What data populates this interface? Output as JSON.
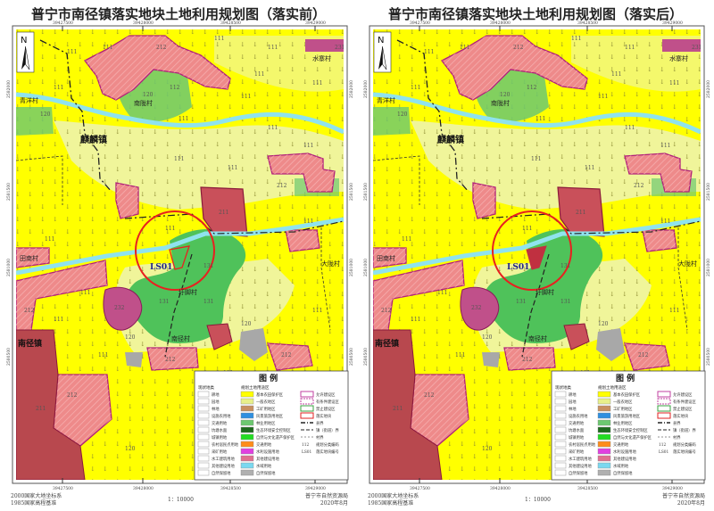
{
  "panels": [
    {
      "title": "普宁市南径镇落实地块土地利用规划图（落实前）",
      "state": "before"
    },
    {
      "title": "普宁市南径镇落实地块土地利用规划图（落实后）",
      "state": "after"
    }
  ],
  "north_label": "N",
  "x_ticks": [
    "39427500",
    "39428000",
    "39428500",
    "39429000"
  ],
  "y_ticks": [
    "2582000",
    "2581500",
    "2581000",
    "2580500"
  ],
  "places": {
    "qingyang": "青洋村",
    "nanlong": "南陇村",
    "shuizhai": "水寨村",
    "qilin": "麒麟镇",
    "tiannan": "田南村",
    "dalong": "大陇村",
    "yujiao": "圩脚村",
    "nanjing_town": "南径镇",
    "nanjing_village": "南径村",
    "plot_id": "LS01"
  },
  "codes": {
    "c111": "111",
    "c112": "112",
    "c120": "120",
    "c131": "131",
    "c211": "211",
    "c212": "212",
    "c232": "232",
    "c231": "231"
  },
  "legend": {
    "title": "图 例",
    "col1_title": "现状地类",
    "col1": [
      "耕地",
      "园地",
      "林地",
      "设施农用地",
      "交通用地",
      "坑塘水面",
      "城镇用地",
      "农村居民点用地",
      "采矿用地",
      "水工建筑用地",
      "其他建设用地",
      "自然保留地"
    ],
    "col2_title": "规划土地用途区",
    "col2": [
      {
        "label": "基本农田保护区",
        "color": "#ffff00"
      },
      {
        "label": "一般农地区",
        "color": "#e8f08a"
      },
      {
        "label": "工矿用地区",
        "color": "#c89060"
      },
      {
        "label": "风景旅游用地区",
        "color": "#2f8fe0"
      },
      {
        "label": "林业用地区",
        "color": "#6cc870"
      },
      {
        "label": "生态环境安全控制区",
        "color": "#1d6a1d"
      },
      {
        "label": "自然与文化遗产保护区",
        "color": "#22dd22"
      },
      {
        "label": "交通用地",
        "color": "#ff8c1a"
      },
      {
        "label": "水利设施用地",
        "color": "#e040e0"
      },
      {
        "label": "其他建设用地",
        "color": "#e07090"
      },
      {
        "label": "水域用地",
        "color": "#7ad8f0"
      },
      {
        "label": "自然保留地",
        "color": "#b0b0b0"
      }
    ],
    "col3": [
      "允许建设区",
      "有条件建设区",
      "禁止建设区",
      "落实地块",
      "县界",
      "镇（街道）界",
      "村界",
      "规划分类编码",
      "落实地块编号"
    ],
    "col3_code_sample": "112",
    "col3_id_sample": "LS01"
  },
  "footer": {
    "crs": "2000国家大地坐标系",
    "datum": "1985国家高程基准",
    "scale": "1：10000",
    "org": "普宁市自然资源局",
    "date": "2020年8月"
  },
  "colors": {
    "basic_farmland": "#ffff00",
    "general_farmland": "#f0f59a",
    "construction": "#ee8a8a",
    "boundary": "#b0207a",
    "forest": "#6cc870",
    "water": "#8fe3ee",
    "highlight": "#e82020"
  }
}
